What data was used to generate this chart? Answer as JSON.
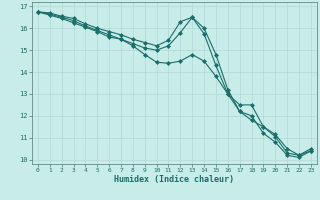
{
  "xlabel": "Humidex (Indice chaleur)",
  "bg_color": "#c8ece8",
  "grid_color": "#b0d8d4",
  "line_color": "#1a6e6a",
  "xlim": [
    -0.5,
    23.5
  ],
  "ylim": [
    9.8,
    17.2
  ],
  "yticks": [
    10,
    11,
    12,
    13,
    14,
    15,
    16,
    17
  ],
  "xticks": [
    0,
    1,
    2,
    3,
    4,
    5,
    6,
    7,
    8,
    9,
    10,
    11,
    12,
    13,
    14,
    15,
    16,
    17,
    18,
    19,
    20,
    21,
    22,
    23
  ],
  "series": [
    [
      16.75,
      16.7,
      16.55,
      16.45,
      16.2,
      16.0,
      15.85,
      15.7,
      15.5,
      15.35,
      15.2,
      15.45,
      16.3,
      16.5,
      15.75,
      14.3,
      13.0,
      12.5,
      12.5,
      11.5,
      11.05,
      10.3,
      10.2,
      10.5
    ],
    [
      16.75,
      16.65,
      16.5,
      16.35,
      16.1,
      15.9,
      15.7,
      15.5,
      15.3,
      15.1,
      15.0,
      15.2,
      15.8,
      16.5,
      16.0,
      14.8,
      13.2,
      12.2,
      12.0,
      11.2,
      10.8,
      10.2,
      10.1,
      10.4
    ],
    [
      16.75,
      16.6,
      16.45,
      16.25,
      16.05,
      15.85,
      15.6,
      15.5,
      15.2,
      14.8,
      14.45,
      14.4,
      14.5,
      14.8,
      14.5,
      13.8,
      13.0,
      12.2,
      11.8,
      11.5,
      11.15,
      10.5,
      10.2,
      10.4
    ]
  ]
}
